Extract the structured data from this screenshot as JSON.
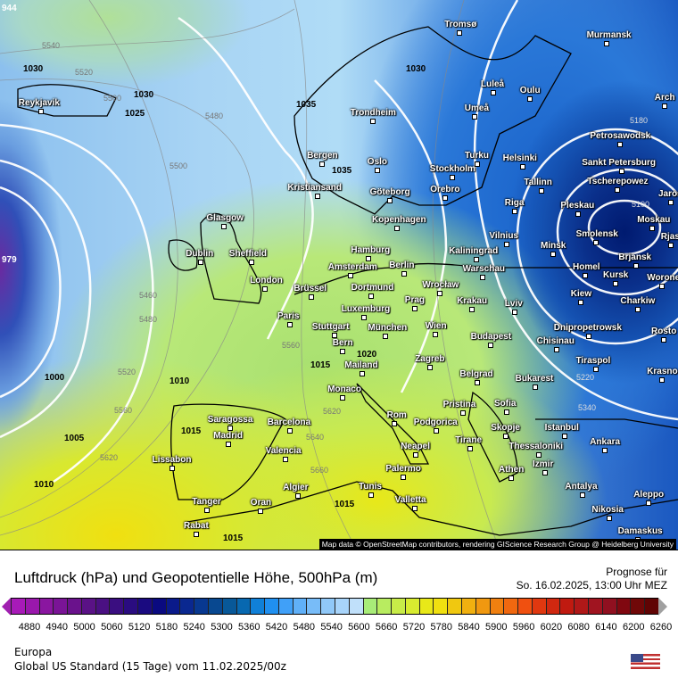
{
  "map": {
    "cities": [
      "Tromsø",
      "Murmansk",
      "Luleå",
      "Oulu",
      "Arch",
      "Reykjavik",
      "Trondheim",
      "Umeå",
      "Petrosawodsk",
      "Bergen",
      "Turku",
      "Helsinki",
      "Oslo",
      "Stockholm",
      "Sankt Petersburg",
      "Tscherepowez",
      "Kristiansand",
      "Göteborg",
      "Orebro",
      "Tallinn",
      "Jaros",
      "Riga",
      "Pleskau",
      "Glasgow",
      "Kopenhagen",
      "Moskau",
      "Vilnius",
      "Smolensk",
      "Rjas",
      "Hamburg",
      "Kaliningrad",
      "Minsk",
      "Dublin",
      "Sheffield",
      "Brjansk",
      "Amsterdam",
      "Berlin",
      "Homel",
      "Kursk",
      "Worone",
      "London",
      "Warschau",
      "Wrocław",
      "Brüssel",
      "Dortmund",
      "Kiew",
      "Krakau",
      "Prag",
      "Lviv",
      "Charkiw",
      "Paris",
      "Luxemburg",
      "Wien",
      "Stuttgart",
      "München",
      "Dnipropetrowsk",
      "Chisinau",
      "Rosto",
      "Budapest",
      "Bern",
      "Mailand",
      "Tiraspol",
      "Krasno",
      "Zagreb",
      "Belgrad",
      "Bukarest",
      "Monaco",
      "Pristina",
      "Sofia",
      "Saragossa",
      "Barcelona",
      "Rom",
      "Podgorica",
      "Skopje",
      "Istanbul",
      "Madrid",
      "Tirane",
      "Thessaloniki",
      "Ankara",
      "Neapel",
      "Valencia",
      "Lissabon",
      "Izmir",
      "Athen",
      "Palermo",
      "Algier",
      "Tunis",
      "Antalya",
      "Aleppo",
      "Valletta",
      "Tanger",
      "Oran",
      "Nikosia",
      "Rabat",
      "Damaskus"
    ],
    "pressure_labels": [
      "944",
      "1030",
      "1030",
      "1025",
      "1035",
      "1035",
      "1030",
      "979",
      "1000",
      "1010",
      "1005",
      "1010",
      "1015",
      "1015",
      "1020",
      "1015",
      "1015"
    ],
    "height_labels": [
      "5540",
      "5520",
      "5500",
      "5480",
      "5500",
      "5460",
      "5480",
      "5560",
      "5520",
      "5560",
      "5620",
      "5660",
      "5620",
      "5640",
      "5180",
      "5100",
      "5220",
      "5340"
    ],
    "attribution": "Map data © OpenStreetMap contributors, rendering GIScience Research Group @ Heidelberg University"
  },
  "legend": {
    "title": "Luftdruck (hPa) und Geopotentielle Höhe, 500hPa (m)",
    "forecast_label": "Prognose für",
    "forecast_time": "So. 16.02.2025, 13:00 Uhr MEZ",
    "ticks": [
      "4880",
      "4940",
      "5000",
      "5060",
      "5120",
      "5180",
      "5240",
      "5300",
      "5360",
      "5420",
      "5480",
      "5540",
      "5600",
      "5660",
      "5720",
      "5780",
      "5840",
      "5900",
      "5960",
      "6020",
      "6080",
      "6140",
      "6200",
      "6260"
    ],
    "colors": [
      "#a81ab8",
      "#9a18ac",
      "#8a16a0",
      "#7a1496",
      "#6a128c",
      "#5a1286",
      "#4a1082",
      "#3a0e80",
      "#2a0c80",
      "#1a0a80",
      "#0a0a80",
      "#0a1a8a",
      "#0a2890",
      "#083890",
      "#084890",
      "#085898",
      "#0868b0",
      "#1080d8",
      "#2090f0",
      "#40a0f8",
      "#60b0f8",
      "#78bcf8",
      "#90c8f8",
      "#a8d4fa",
      "#c0e0fa",
      "#a8ec78",
      "#b8ec60",
      "#c8ec48",
      "#d8ec30",
      "#e8e818",
      "#f0e010",
      "#f0c810",
      "#f0b010",
      "#f09810",
      "#f08010",
      "#f06810",
      "#f05010",
      "#e03810",
      "#d02810",
      "#c01a10",
      "#b01818",
      "#a01420",
      "#901020",
      "#800810",
      "#700808",
      "#600404"
    ],
    "region": "Europa",
    "model": "Global US Standard (15 Tage) vom  11.02.2025/00z"
  }
}
